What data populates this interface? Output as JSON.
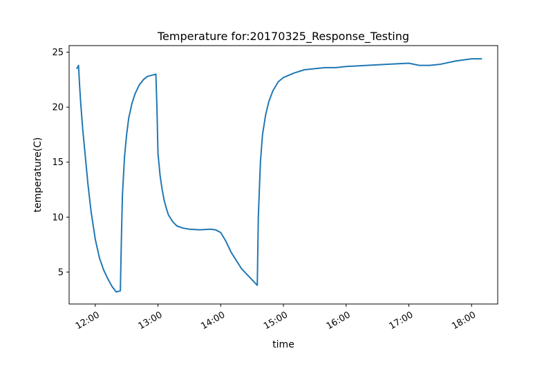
{
  "chart_data": {
    "type": "line",
    "title": "Temperature for:20170325_Response_Testing",
    "xlabel": "time",
    "ylabel": "temperature(C)",
    "x_type": "time",
    "xlim": [
      "11:35",
      "18:25"
    ],
    "ylim": [
      2.1,
      25.6
    ],
    "x_ticks": [
      "12:00",
      "13:00",
      "14:00",
      "15:00",
      "16:00",
      "17:00",
      "18:00"
    ],
    "y_ticks": [
      5,
      10,
      15,
      20,
      25
    ],
    "grid": false,
    "legend": "none",
    "line_color": "#1f77b4",
    "series": [
      {
        "x": [
          "11:42",
          "11:43",
          "11:44",
          "11:45",
          "11:46",
          "11:48",
          "11:50",
          "11:53",
          "11:56",
          "12:00",
          "12:04",
          "12:08",
          "12:12",
          "12:16",
          "12:20",
          "12:24",
          "12:25",
          "12:26",
          "12:28",
          "12:30",
          "12:32",
          "12:35",
          "12:38",
          "12:42",
          "12:46",
          "12:50",
          "12:54",
          "12:58",
          "12:59",
          "13:00",
          "13:02",
          "13:04",
          "13:06",
          "13:08",
          "13:10",
          "13:14",
          "13:18",
          "13:24",
          "13:30",
          "13:40",
          "13:50",
          "13:55",
          "14:00",
          "14:05",
          "14:10",
          "14:20",
          "14:30",
          "14:34",
          "14:35",
          "14:36",
          "14:38",
          "14:40",
          "14:43",
          "14:46",
          "14:50",
          "14:55",
          "15:00",
          "15:10",
          "15:20",
          "15:30",
          "15:40",
          "15:50",
          "16:00",
          "16:20",
          "16:40",
          "17:00",
          "17:10",
          "17:20",
          "17:30",
          "17:45",
          "18:00",
          "18:10"
        ],
        "y": [
          23.5,
          23.6,
          23.8,
          22.0,
          20.5,
          18.0,
          16.0,
          13.0,
          10.5,
          8.0,
          6.3,
          5.2,
          4.4,
          3.7,
          3.2,
          3.3,
          8.0,
          12.0,
          15.5,
          17.5,
          19.0,
          20.3,
          21.2,
          22.0,
          22.5,
          22.8,
          22.9,
          23.0,
          20.0,
          15.8,
          13.8,
          12.5,
          11.5,
          10.8,
          10.2,
          9.6,
          9.2,
          9.0,
          8.9,
          8.85,
          8.9,
          8.85,
          8.6,
          7.8,
          6.8,
          5.3,
          4.3,
          3.9,
          3.8,
          10.0,
          15.0,
          17.5,
          19.3,
          20.5,
          21.5,
          22.3,
          22.7,
          23.1,
          23.4,
          23.5,
          23.6,
          23.6,
          23.7,
          23.8,
          23.9,
          24.0,
          23.8,
          23.8,
          23.9,
          24.2,
          24.4,
          24.4
        ]
      }
    ]
  }
}
